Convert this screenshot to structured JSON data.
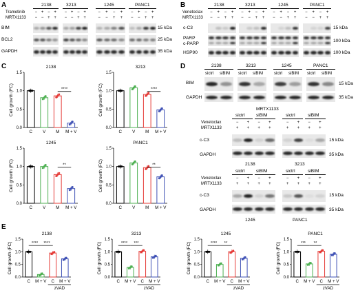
{
  "panels": {
    "A": "A",
    "B": "B",
    "C": "C",
    "D": "D",
    "E": "E"
  },
  "A": {
    "lines": [
      "2138",
      "3213",
      "1245",
      "PANC1"
    ],
    "row_labels": [
      "Trametinib",
      "MRTX1133"
    ],
    "signs": {
      "t": [
        "−",
        "+",
        "−",
        "+"
      ],
      "m": [
        "−",
        "−",
        "+",
        "+"
      ]
    },
    "blots": [
      "BIM",
      "BCL2",
      "GAPDH"
    ],
    "kda": [
      "15 kDa",
      "25 kDa",
      "35 kDa"
    ]
  },
  "B": {
    "lines": [
      "2138",
      "3213",
      "1245",
      "PANC1"
    ],
    "row_labels": [
      "Venetoclax",
      "MRTX1133"
    ],
    "signs": {
      "v": [
        "−",
        "+",
        "−",
        "+"
      ],
      "m": [
        "−",
        "−",
        "+",
        "+"
      ]
    },
    "blots": [
      "c-C3",
      "PARP",
      "c-PARP",
      "HSP90"
    ],
    "kda": [
      "15 kDa",
      "100 kDa",
      "100 kDa"
    ]
  },
  "C": {
    "ylabel": "Cell growth (FC)",
    "xcats": [
      "C",
      "V",
      "M",
      "M + V"
    ],
    "charts": [
      {
        "title": "2138",
        "ticks": [
          "0.0",
          "0.5",
          "1.0",
          "1.5"
        ],
        "ymax": 1.5,
        "values": [
          1.0,
          0.81,
          0.86,
          0.12
        ],
        "sig": "****"
      },
      {
        "title": "3213",
        "ticks": [
          "0.0",
          "0.5",
          "1.0",
          "1.5"
        ],
        "ymax": 1.5,
        "values": [
          1.0,
          1.08,
          0.9,
          0.48
        ],
        "sig": "****"
      },
      {
        "title": "1245",
        "ticks": [
          "0.0",
          "0.5",
          "1.0",
          "1.5"
        ],
        "ymax": 1.5,
        "values": [
          1.0,
          1.0,
          0.78,
          0.4
        ],
        "sig": "**"
      },
      {
        "title": "PANC1",
        "ticks": [
          "0.0",
          "0.5",
          "1.0",
          "1.5"
        ],
        "ymax": 1.5,
        "values": [
          1.0,
          1.1,
          0.97,
          0.72
        ],
        "sig": "**"
      }
    ]
  },
  "D": {
    "top": {
      "lines": [
        "2138",
        "3213",
        "1245",
        "PANC1"
      ],
      "sub": [
        "sictrl",
        "siBIM"
      ],
      "blots": [
        "BIM",
        "GAPDH"
      ],
      "kda": [
        "15 kDa",
        "35 kDa"
      ]
    },
    "drug": "MRTX1133",
    "mid": {
      "col": [
        "sictrl",
        "siBIM"
      ],
      "rows": [
        "Venetoclax",
        "MRTX1133"
      ],
      "signs": {
        "v": [
          "−",
          "+",
          "−",
          "+"
        ],
        "m": [
          "+",
          "+",
          "+",
          "+"
        ]
      },
      "blots": [
        "c-C3",
        "GAPDH"
      ],
      "kda": [
        "15 kDa",
        "35 kDa"
      ],
      "lines": [
        "2138",
        "3213"
      ]
    },
    "bot": {
      "col": [
        "sictrl",
        "siBIM"
      ],
      "rows": [
        "Venetoclax",
        "MRTX1133"
      ],
      "signs": {
        "v": [
          "−",
          "+",
          "−",
          "+"
        ],
        "m": [
          "+",
          "+",
          "+",
          "+"
        ]
      },
      "blots": [
        "c-C3",
        "GAPDH"
      ],
      "kda": [
        "15 kDa",
        "35 kDa"
      ],
      "lines": [
        "1245",
        "PANC1"
      ]
    }
  },
  "E": {
    "ylabel": "Cell growth (FC)",
    "xcats": [
      "C",
      "M + V",
      "C",
      "M + V"
    ],
    "zvad": "zVAD",
    "charts": [
      {
        "title": "2138",
        "ticks": [
          "0.0",
          "0.5",
          "1.0",
          "1.5"
        ],
        "ymax": 1.5,
        "values": [
          1.0,
          0.1,
          0.95,
          0.72
        ],
        "sig": [
          "****",
          "****"
        ]
      },
      {
        "title": "3213",
        "ticks": [
          "0.0",
          "0.5",
          "1.0",
          "1.5"
        ],
        "ymax": 1.5,
        "values": [
          1.0,
          0.38,
          1.02,
          0.8
        ],
        "sig": [
          "****",
          "***"
        ]
      },
      {
        "title": "1245",
        "ticks": [
          "0.0",
          "0.5",
          "1.0",
          "1.5"
        ],
        "ymax": 1.5,
        "values": [
          1.0,
          0.5,
          1.0,
          0.74
        ],
        "sig": [
          "****",
          "**"
        ]
      },
      {
        "title": "PANC1",
        "ticks": [
          "0.0",
          "0.5",
          "1.0",
          "1.5"
        ],
        "ymax": 1.5,
        "values": [
          1.0,
          0.52,
          1.02,
          0.9
        ],
        "sig": [
          "***",
          "**"
        ]
      }
    ]
  },
  "colors": {
    "black": "#000000",
    "green": "#4caf50",
    "red": "#e53935",
    "blue": "#3f51b5"
  },
  "chart_data": [
    {
      "type": "bar",
      "title": "2138",
      "categories": [
        "C",
        "V",
        "M",
        "M + V"
      ],
      "values": [
        1.0,
        0.81,
        0.86,
        0.12
      ],
      "ylabel": "Cell growth (FC)",
      "ylim": [
        0,
        1.5
      ]
    },
    {
      "type": "bar",
      "title": "3213",
      "categories": [
        "C",
        "V",
        "M",
        "M + V"
      ],
      "values": [
        1.0,
        1.08,
        0.9,
        0.48
      ],
      "ylabel": "Cell growth (FC)",
      "ylim": [
        0,
        1.5
      ]
    },
    {
      "type": "bar",
      "title": "1245",
      "categories": [
        "C",
        "V",
        "M",
        "M + V"
      ],
      "values": [
        1.0,
        1.0,
        0.78,
        0.4
      ],
      "ylabel": "Cell growth (FC)",
      "ylim": [
        0,
        1.5
      ]
    },
    {
      "type": "bar",
      "title": "PANC1",
      "categories": [
        "C",
        "V",
        "M",
        "M + V"
      ],
      "values": [
        1.0,
        1.1,
        0.97,
        0.72
      ],
      "ylabel": "Cell growth (FC)",
      "ylim": [
        0,
        1.5
      ]
    },
    {
      "type": "bar",
      "title": "2138",
      "categories": [
        "C",
        "M + V",
        "C",
        "M + V"
      ],
      "values": [
        1.0,
        0.1,
        0.95,
        0.72
      ],
      "ylabel": "Cell growth (FC)",
      "ylim": [
        0,
        1.5
      ]
    },
    {
      "type": "bar",
      "title": "3213",
      "categories": [
        "C",
        "M + V",
        "C",
        "M + V"
      ],
      "values": [
        1.0,
        0.38,
        1.02,
        0.8
      ],
      "ylabel": "Cell growth (FC)",
      "ylim": [
        0,
        1.5
      ]
    },
    {
      "type": "bar",
      "title": "1245",
      "categories": [
        "C",
        "M + V",
        "C",
        "M + V"
      ],
      "values": [
        1.0,
        0.5,
        1.0,
        0.74
      ],
      "ylabel": "Cell growth (FC)",
      "ylim": [
        0,
        1.5
      ]
    },
    {
      "type": "bar",
      "title": "PANC1",
      "categories": [
        "C",
        "M + V",
        "C",
        "M + V"
      ],
      "values": [
        1.0,
        0.52,
        1.02,
        0.9
      ],
      "ylabel": "Cell growth (FC)",
      "ylim": [
        0,
        1.5
      ]
    }
  ]
}
